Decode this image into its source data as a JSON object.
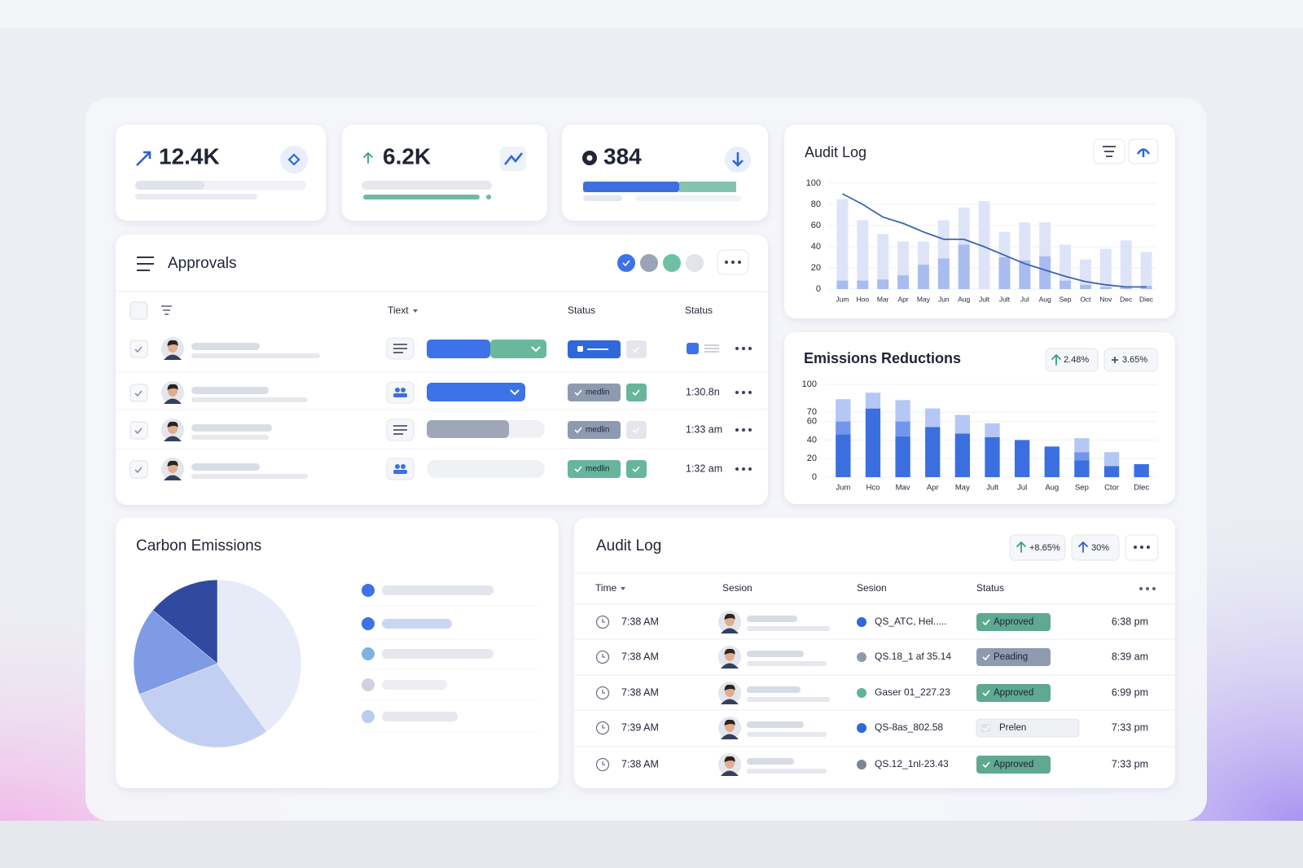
{
  "kpis": [
    "12.4K",
    "6.2K",
    "384"
  ],
  "approvals": {
    "title": "Approvals",
    "headers": [
      "Tiext",
      "Status",
      "Status"
    ],
    "badges": [
      "medlin",
      "medlin",
      "medlin"
    ],
    "badge_colors": [
      "#8e9aaf",
      "#8e9aaf",
      "#66b59c"
    ],
    "times": [
      "1:30.8n",
      "1:33 am",
      "1:32 am"
    ]
  },
  "chart_data": [
    {
      "type": "bar",
      "title": "Audit Log",
      "barmode": "overlay",
      "categories": [
        "Jum",
        "Hoo",
        "Mar",
        "Apr",
        "May",
        "Jun",
        "Aug",
        "Jult",
        "Jult",
        "Jul",
        "Aug",
        "Sep",
        "Oct",
        "Nov",
        "Dec",
        "Diec"
      ],
      "ylim": [
        0,
        100
      ],
      "yticks": [
        0,
        20,
        40,
        60,
        80,
        100
      ],
      "grid": true,
      "series": [
        {
          "color": "#dde4f8",
          "values": [
            85,
            65,
            52,
            45,
            45,
            65,
            77,
            83,
            54,
            63,
            63,
            42,
            28,
            38,
            46,
            35
          ]
        },
        {
          "color": "#a9bcf0",
          "values": [
            8,
            8,
            9,
            13,
            23,
            29,
            42,
            0,
            30,
            27,
            31,
            8,
            4,
            2,
            2,
            3
          ]
        },
        {
          "type": "line",
          "color": "#3e63ad",
          "values": [
            90,
            80,
            68,
            62,
            54,
            47,
            47,
            40,
            32,
            24,
            18,
            12,
            7,
            4,
            2,
            2
          ]
        }
      ]
    },
    {
      "type": "bar",
      "title": "Emissions Reductions",
      "barmode": "stack",
      "annotations": [
        "2.48%",
        "3.65%"
      ],
      "categories": [
        "Jum",
        "Hco",
        "Mav",
        "Apr",
        "May",
        "Jult",
        "Jul",
        "Aug",
        "Sep",
        "Ctor",
        "Dlec"
      ],
      "ylim": [
        0,
        100
      ],
      "yticks": [
        0,
        20,
        40,
        60,
        70,
        100
      ],
      "grid": true,
      "series": [
        {
          "color": "#3b6fe0",
          "values": [
            46,
            74,
            44,
            54,
            47,
            43,
            40,
            33,
            18,
            12,
            14
          ]
        },
        {
          "color": "#7196ec",
          "values": [
            14,
            0,
            16,
            0,
            0,
            0,
            0,
            0,
            9,
            0,
            0
          ]
        },
        {
          "color": "#b5c7f5",
          "values": [
            24,
            17,
            23,
            20,
            20,
            15,
            0,
            0,
            15,
            15,
            0
          ]
        }
      ]
    },
    {
      "type": "pie",
      "title": "Carbon Emissions",
      "values": [
        40,
        29,
        17,
        14
      ],
      "colors": [
        "#e7ebf8",
        "#c3cff2",
        "#7f9be6",
        "#2f4a9e"
      ]
    }
  ],
  "audit_table": {
    "title": "Audit Log",
    "badges": [
      "+8.65%",
      "30%"
    ],
    "headers": [
      "Time",
      "Sesion",
      "Sesion",
      "Status"
    ],
    "rows": [
      {
        "time": "7:38 AM",
        "session": "QS_ATC, Hel.....",
        "status": "Approved",
        "color": "#5fa891",
        "end": "6:38 pm"
      },
      {
        "time": "7:38 AM",
        "session": "QS.18_1 af 35.14",
        "status": "Peading",
        "color": "#8e9aaf",
        "end": "8:39 am"
      },
      {
        "time": "7:38 AM",
        "session": "Gaser 01_227.23",
        "status": "Approved",
        "color": "#5fa891",
        "end": "6:99 pm"
      },
      {
        "time": "7:39 AM",
        "session": "QS-8as_802.58",
        "status": "Prelen",
        "color": "#eef0f4",
        "end": "7:33 pm"
      },
      {
        "time": "7:38 AM",
        "session": "QS.12_1nl-23.43",
        "status": "Approved",
        "color": "#5fa891",
        "end": "7:33 pm"
      }
    ]
  }
}
